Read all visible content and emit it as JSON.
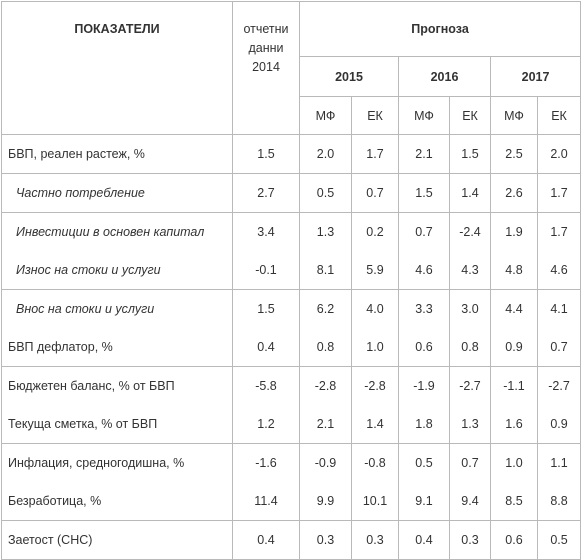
{
  "header": {
    "indicators": "ПОКАЗАТЕЛИ",
    "reported_line1": "отчетни",
    "reported_line2": "данни",
    "reported_line3": "2014",
    "forecast": "Прогноза",
    "years": [
      "2015",
      "2016",
      "2017"
    ],
    "sources": [
      "МФ",
      "ЕК",
      "МФ",
      "ЕК",
      "МФ",
      "ЕК"
    ]
  },
  "rows": [
    {
      "label": "БВП, реален растеж, %",
      "values": [
        "1.5",
        "2.0",
        "1.7",
        "2.1",
        "1.5",
        "2.5",
        "2.0"
      ]
    },
    {
      "label": "Частно потребление",
      "values": [
        "2.7",
        "0.5",
        "0.7",
        "1.5",
        "1.4",
        "2.6",
        "1.7"
      ]
    },
    {
      "label": "Инвестиции в основен капитал",
      "values": [
        "3.4",
        "1.3",
        "0.2",
        "0.7",
        "-2.4",
        "1.9",
        "1.7"
      ]
    },
    {
      "label": "Износ на стоки и услуги",
      "values": [
        "-0.1",
        "8.1",
        "5.9",
        "4.6",
        "4.3",
        "4.8",
        "4.6"
      ]
    },
    {
      "label": "Внос на стоки и услуги",
      "values": [
        "1.5",
        "6.2",
        "4.0",
        "3.3",
        "3.0",
        "4.4",
        "4.1"
      ]
    },
    {
      "label": "БВП дефлатор, %",
      "values": [
        "0.4",
        "0.8",
        "1.0",
        "0.6",
        "0.8",
        "0.9",
        "0.7"
      ]
    },
    {
      "label": "Бюджетен баланс, % от БВП",
      "values": [
        "-5.8",
        "-2.8",
        "-2.8",
        "-1.9",
        "-2.7",
        "-1.1",
        "-2.7"
      ]
    },
    {
      "label": "Текуща сметка, % от БВП",
      "values": [
        "1.2",
        "2.1",
        "1.4",
        "1.8",
        "1.3",
        "1.6",
        "0.9"
      ]
    },
    {
      "label": "Инфлация, средногодишна, %",
      "values": [
        "-1.6",
        "-0.9",
        "-0.8",
        "0.5",
        "0.7",
        "1.0",
        "1.1"
      ]
    },
    {
      "label": "Безработица, %",
      "values": [
        "11.4",
        "9.9",
        "10.1",
        "9.1",
        "9.4",
        "8.5",
        "8.8"
      ]
    },
    {
      "label": "Заетост (СНС)",
      "values": [
        "0.4",
        "0.3",
        "0.3",
        "0.4",
        "0.3",
        "0.6",
        "0.5"
      ]
    }
  ]
}
